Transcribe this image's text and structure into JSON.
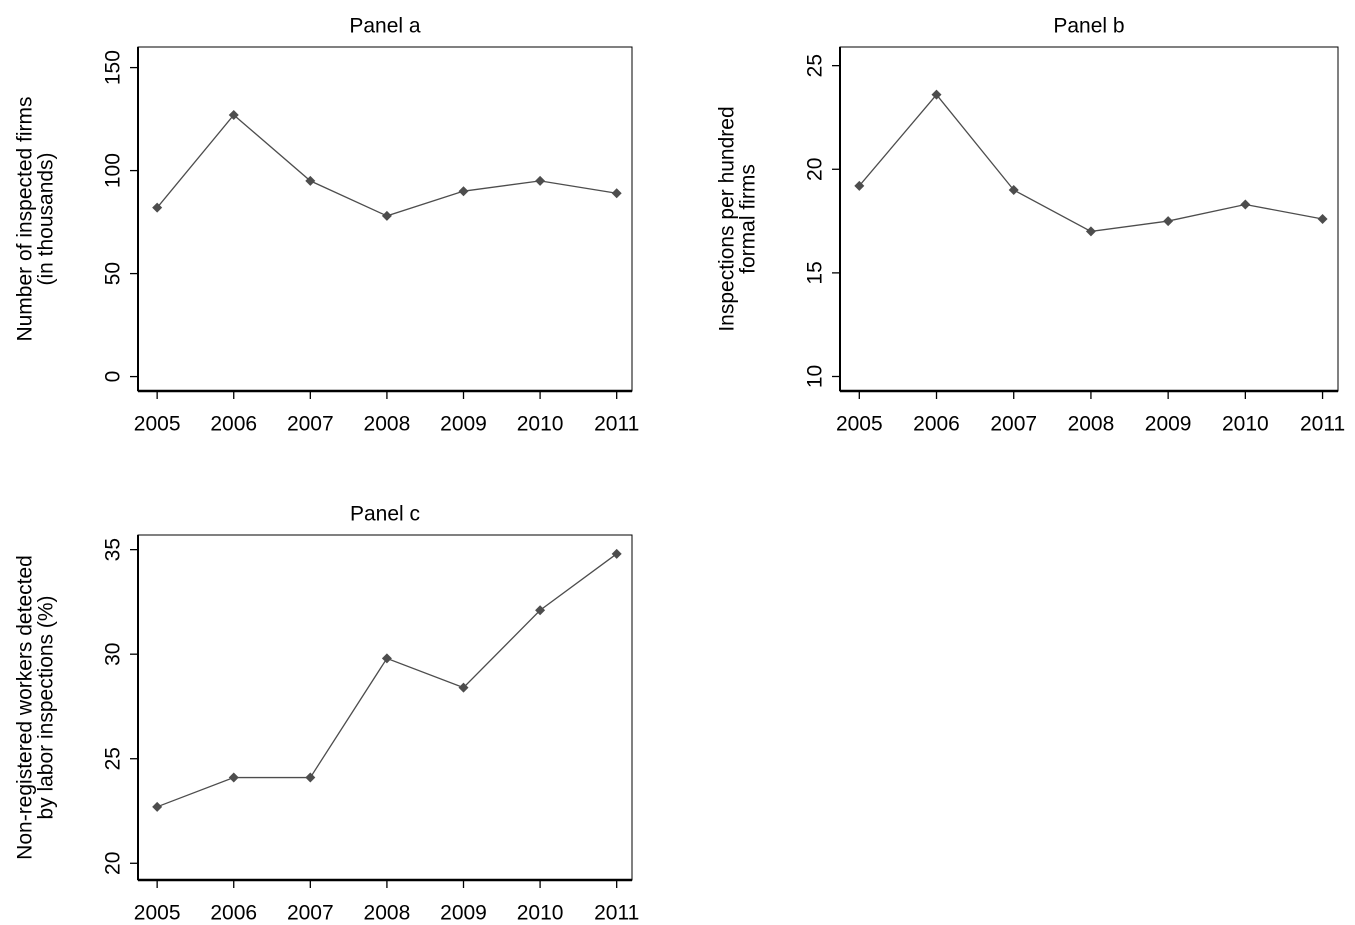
{
  "chart_data": [
    {
      "type": "line",
      "title": "Panel a",
      "ylabel": [
        "Number of inspected firms",
        "(in thousands)"
      ],
      "x": [
        2005,
        2006,
        2007,
        2008,
        2009,
        2010,
        2011
      ],
      "values": [
        82,
        127,
        95,
        78,
        90,
        95,
        89
      ],
      "color": "#4d4d4d",
      "xlim": [
        2004.75,
        2011.2
      ],
      "xticks": [
        2005,
        2006,
        2007,
        2008,
        2009,
        2010,
        2011
      ],
      "ylim": [
        -7,
        160
      ],
      "yticks": [
        0,
        50,
        100,
        150
      ]
    },
    {
      "type": "line",
      "title": "Panel b",
      "ylabel": [
        "Inspections per hundred",
        "formal firms"
      ],
      "x": [
        2005,
        2006,
        2007,
        2008,
        2009,
        2010,
        2011
      ],
      "values": [
        19.2,
        23.6,
        19.0,
        17.0,
        17.5,
        18.3,
        17.6
      ],
      "color": "#4d4d4d",
      "xlim": [
        2004.75,
        2011.2
      ],
      "xticks": [
        2005,
        2006,
        2007,
        2008,
        2009,
        2010,
        2011
      ],
      "ylim": [
        9.3,
        25.9
      ],
      "yticks": [
        10,
        15,
        20,
        25
      ]
    },
    {
      "type": "line",
      "title": "Panel c",
      "ylabel": [
        "Non-registered workers detected",
        "by labor inspections (%)"
      ],
      "x": [
        2005,
        2006,
        2007,
        2008,
        2009,
        2010,
        2011
      ],
      "values": [
        22.7,
        24.1,
        24.1,
        29.8,
        28.4,
        32.1,
        34.8
      ],
      "color": "#4d4d4d",
      "xlim": [
        2004.75,
        2011.2
      ],
      "xticks": [
        2005,
        2006,
        2007,
        2008,
        2009,
        2010,
        2011
      ],
      "ylim": [
        19.2,
        35.7
      ],
      "yticks": [
        20,
        25,
        30,
        35
      ]
    }
  ]
}
